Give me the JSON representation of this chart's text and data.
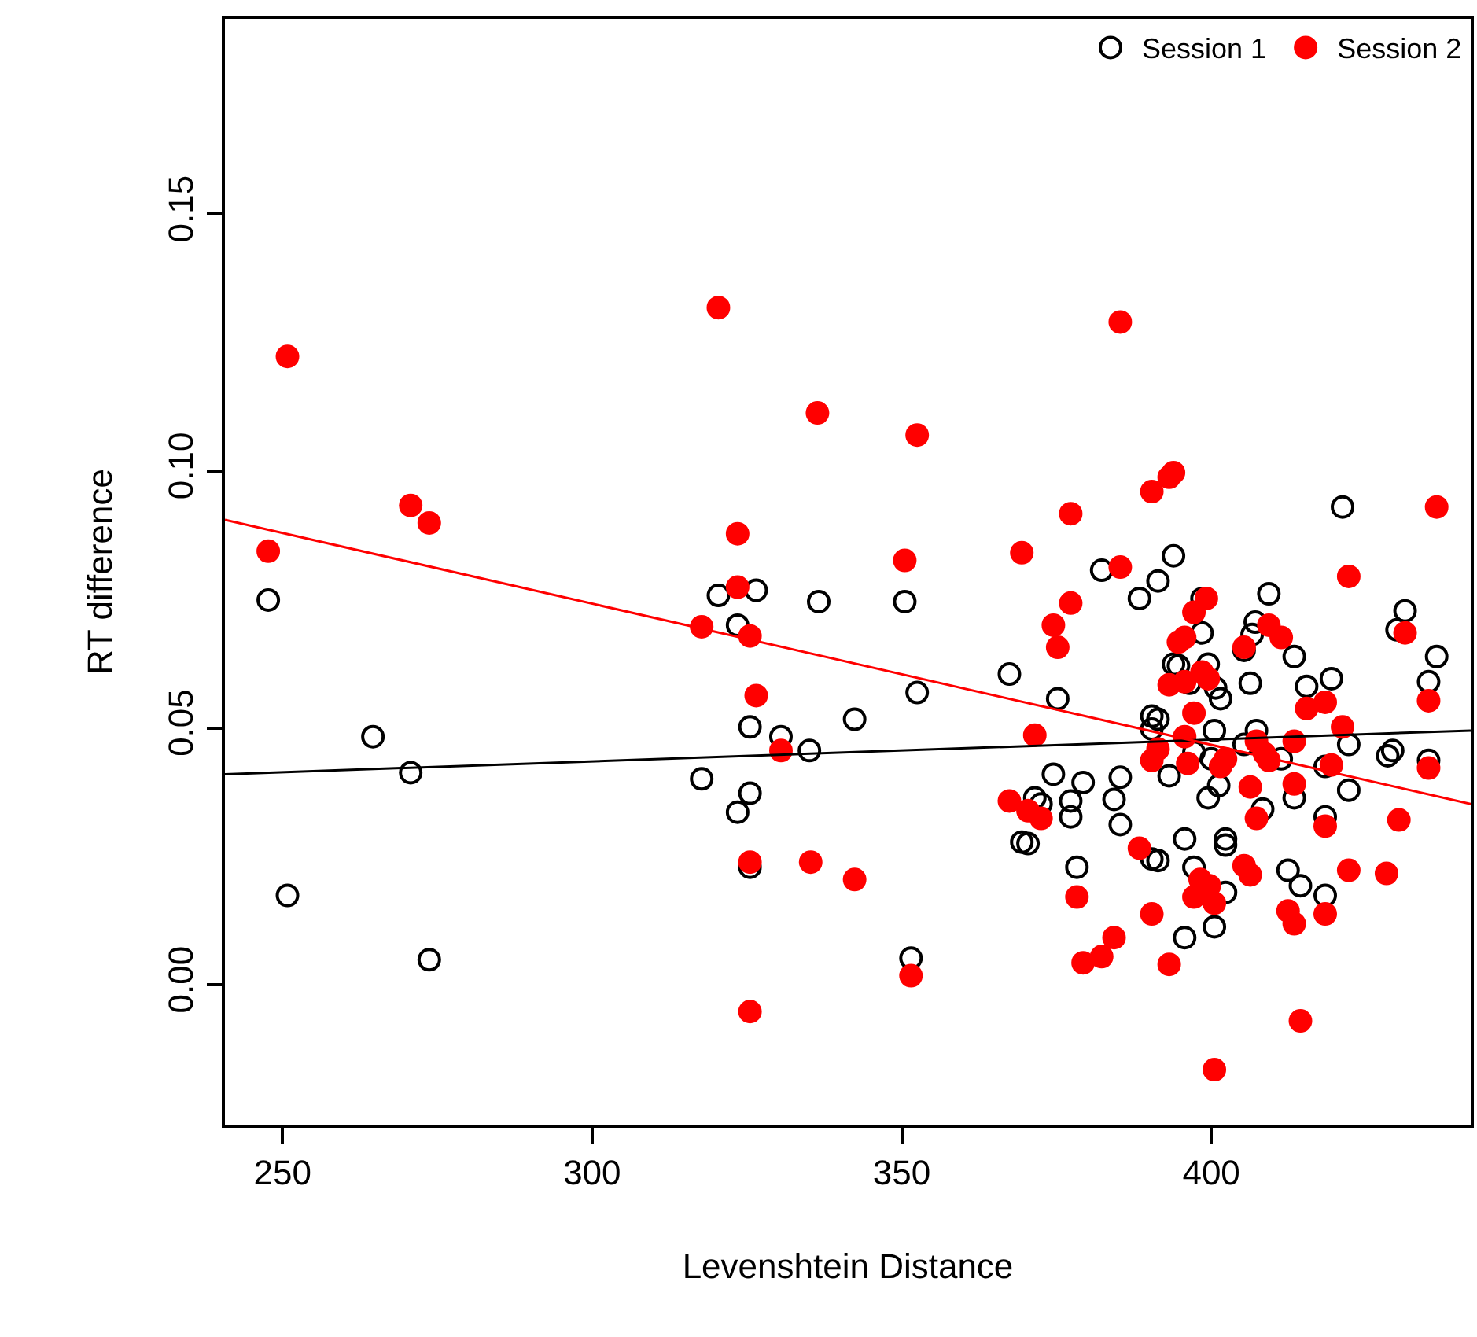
{
  "chart_data": {
    "type": "scatter",
    "xlabel": "Levenshtein Distance",
    "ylabel": "RT difference",
    "xlim": [
      240.7,
      441.9
    ],
    "ylim": [
      -0.0272,
      0.188
    ],
    "xticks": [
      250,
      300,
      350,
      400
    ],
    "yticks": [
      {
        "value": 0,
        "label": "0.00"
      },
      {
        "value": 0.05,
        "label": "0.05"
      },
      {
        "value": 0.1,
        "label": "0.10"
      },
      {
        "value": 0.15,
        "label": "0.15"
      }
    ],
    "legend": "top right",
    "series": [
      {
        "name": "Session 1",
        "color": "#000000",
        "marker": "circle-open",
        "x": [
          247.7,
          250.8,
          264.6,
          270.7,
          273.7,
          317.7,
          320.4,
          323.5,
          323.5,
          325.5,
          325.5,
          325.5,
          326.5,
          330.5,
          335.1,
          336.6,
          342.4,
          350.5,
          351.5,
          352.5,
          367.4,
          369.4,
          370.4,
          371.5,
          372.5,
          374.5,
          375.2,
          377.3,
          377.3,
          378.3,
          379.3,
          382.3,
          384.3,
          385.3,
          385.3,
          388.4,
          390.4,
          390.4,
          390.4,
          391.4,
          391.4,
          391.4,
          393.2,
          393.9,
          393.9,
          394.7,
          395.7,
          395.7,
          396.5,
          397.2,
          397.2,
          398.5,
          398.5,
          399.5,
          399.5,
          400.0,
          400.5,
          400.5,
          400.7,
          401.2,
          401.5,
          402.3,
          402.3,
          402.3,
          405.3,
          405.3,
          406.3,
          406.6,
          407.1,
          407.3,
          408.3,
          409.3,
          411.3,
          412.4,
          413.4,
          413.4,
          414.4,
          415.4,
          418.4,
          418.4,
          418.4,
          419.4,
          421.2,
          422.2,
          422.2,
          428.5,
          429.3,
          430.0,
          431.3,
          435.1,
          435.1,
          436.4
        ],
        "values": [
          0.0749,
          0.0174,
          0.0483,
          0.0413,
          0.0049,
          0.0401,
          0.0758,
          0.07,
          0.0336,
          0.0502,
          0.0373,
          0.0229,
          0.0768,
          0.0483,
          0.0456,
          0.0746,
          0.0517,
          0.0746,
          0.0052,
          0.0569,
          0.0605,
          0.0278,
          0.0275,
          0.0364,
          0.0352,
          0.041,
          0.0557,
          0.0358,
          0.0327,
          0.0229,
          0.0394,
          0.0807,
          0.0361,
          0.0404,
          0.0312,
          0.0752,
          0.0245,
          0.0523,
          0.0498,
          0.0786,
          0.0517,
          0.0242,
          0.0407,
          0.0835,
          0.0624,
          0.0621,
          0.0284,
          0.0092,
          0.0587,
          0.0453,
          0.0229,
          0.0752,
          0.0685,
          0.0624,
          0.0364,
          0.044,
          0.0495,
          0.0113,
          0.0578,
          0.0388,
          0.0557,
          0.0284,
          0.0272,
          0.018,
          0.0651,
          0.0468,
          0.0587,
          0.0682,
          0.0706,
          0.0495,
          0.0342,
          0.0761,
          0.044,
          0.0223,
          0.0639,
          0.0364,
          0.0193,
          0.0581,
          0.0425,
          0.0327,
          0.0174,
          0.0596,
          0.093,
          0.0468,
          0.0379,
          0.0446,
          0.0456,
          0.0691,
          0.0728,
          0.059,
          0.0437,
          0.0639
        ]
      },
      {
        "name": "Session 2",
        "color": "#ff0000",
        "marker": "circle",
        "x": [
          247.7,
          250.8,
          270.7,
          273.7,
          317.7,
          320.4,
          323.5,
          323.5,
          325.5,
          325.5,
          325.5,
          326.5,
          330.5,
          335.3,
          336.4,
          342.4,
          350.5,
          351.5,
          352.5,
          367.4,
          369.4,
          370.4,
          371.5,
          372.5,
          374.5,
          375.2,
          377.3,
          377.3,
          378.3,
          379.3,
          382.3,
          384.3,
          385.3,
          385.3,
          388.4,
          390.4,
          390.4,
          390.4,
          391.4,
          393.2,
          393.2,
          393.2,
          393.9,
          394.7,
          395.7,
          395.7,
          395.7,
          396.2,
          397.2,
          397.2,
          397.2,
          398.2,
          398.5,
          399.2,
          399.5,
          399.7,
          400.5,
          400.5,
          401.5,
          402.3,
          405.3,
          405.3,
          406.3,
          406.3,
          407.3,
          407.3,
          408.6,
          409.3,
          409.3,
          411.3,
          412.4,
          413.4,
          413.4,
          413.4,
          414.4,
          415.4,
          418.4,
          418.4,
          418.4,
          419.4,
          421.2,
          422.2,
          422.2,
          428.3,
          430.3,
          431.3,
          435.1,
          435.1,
          436.4
        ],
        "values": [
          0.0844,
          0.1223,
          0.0933,
          0.0899,
          0.0697,
          0.1318,
          0.0878,
          0.0774,
          0.0679,
          0.0239,
          -0.0052,
          0.0563,
          0.0456,
          0.0239,
          0.1113,
          0.0205,
          0.0826,
          0.0018,
          0.107,
          0.0358,
          0.0841,
          0.0339,
          0.0486,
          0.0324,
          0.07,
          0.0657,
          0.0917,
          0.0743,
          0.0171,
          0.0043,
          0.0055,
          0.0092,
          0.129,
          0.0813,
          0.0266,
          0.096,
          0.0437,
          0.0138,
          0.0459,
          0.0988,
          0.0584,
          0.004,
          0.0997,
          0.0667,
          0.0676,
          0.059,
          0.0483,
          0.0431,
          0.0725,
          0.0529,
          0.0171,
          0.0205,
          0.0609,
          0.0752,
          0.0596,
          0.0193,
          0.0159,
          -0.0165,
          0.0425,
          0.044,
          0.0657,
          0.0232,
          0.0385,
          0.0214,
          0.0474,
          0.0324,
          0.045,
          0.07,
          0.0437,
          0.0676,
          0.0144,
          0.0474,
          0.0391,
          0.0119,
          -0.007,
          0.0538,
          0.055,
          0.0309,
          0.0138,
          0.0428,
          0.0502,
          0.0795,
          0.0223,
          0.0217,
          0.0321,
          0.0685,
          0.0553,
          0.0422,
          0.093
        ]
      },
      {
        "type": "line",
        "color": "#000000",
        "marker": "none",
        "x": [
          240.7,
          441.9
        ],
        "values": [
          0.041,
          0.0495
        ]
      },
      {
        "type": "line",
        "color": "#ff0000",
        "marker": "none",
        "x": [
          240.7,
          441.9
        ],
        "values": [
          0.0905,
          0.0352
        ]
      }
    ]
  }
}
